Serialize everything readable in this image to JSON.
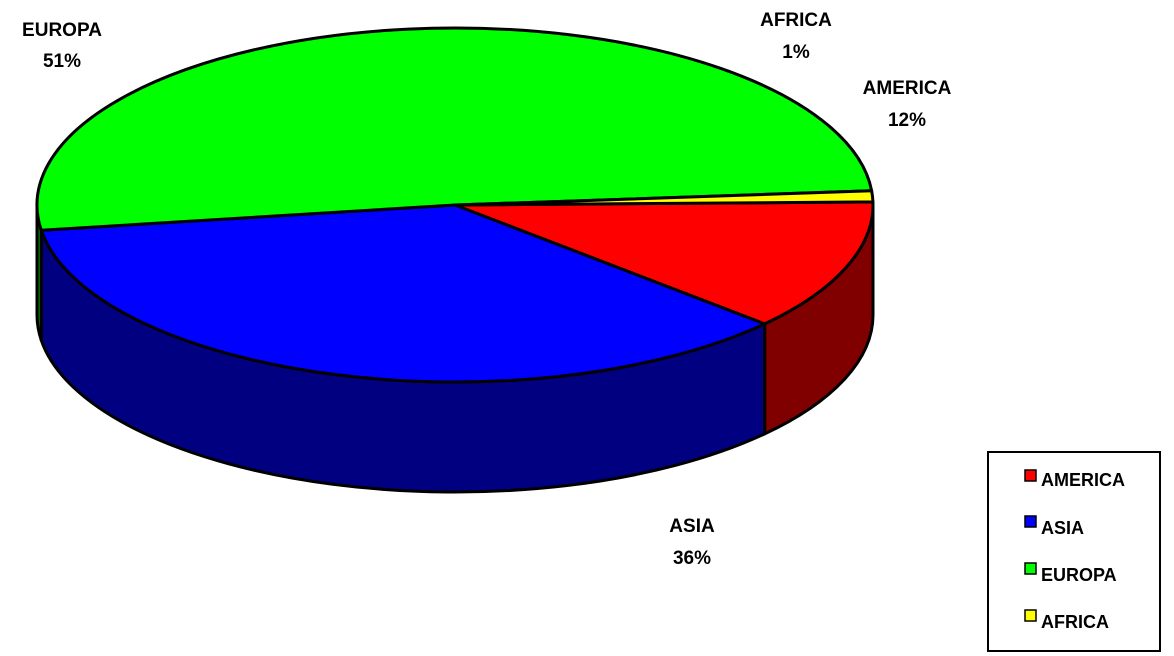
{
  "chart_data": {
    "type": "pie",
    "title": "",
    "three_d": true,
    "categories": [
      "AMERICA",
      "ASIA",
      "EUROPA",
      "AFRICA"
    ],
    "values": [
      12,
      36,
      51,
      1
    ],
    "slices": [
      {
        "name": "AMERICA",
        "percent_label": "12%",
        "value": 12,
        "color": "#ff0000",
        "side_color": "#800000"
      },
      {
        "name": "ASIA",
        "percent_label": "36%",
        "value": 36,
        "color": "#0000ff",
        "side_color": "#000080"
      },
      {
        "name": "EUROPA",
        "percent_label": "51%",
        "value": 51,
        "color": "#00ff00",
        "side_color": "#008000"
      },
      {
        "name": "AFRICA",
        "percent_label": "1%",
        "value": 1,
        "color": "#ffff00",
        "side_color": "#808000"
      }
    ],
    "legend": {
      "placement": "bottom-right",
      "entries": [
        "AMERICA",
        "ASIA",
        "EUROPA",
        "AFRICA"
      ]
    }
  }
}
